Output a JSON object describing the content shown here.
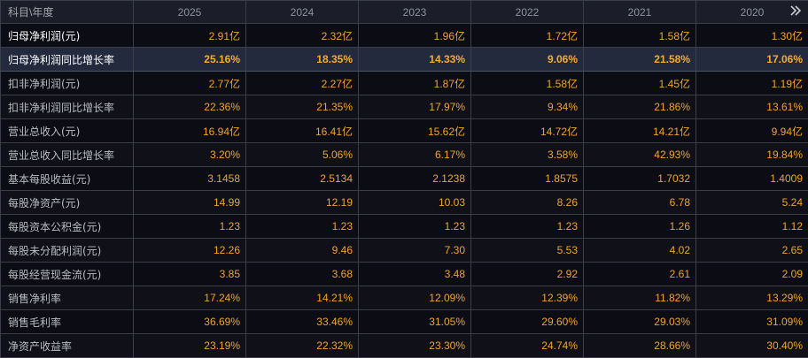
{
  "header": {
    "label": "科目\\年度",
    "years": [
      "2025",
      "2024",
      "2023",
      "2022",
      "2021",
      "2020"
    ],
    "more_icon": "double-chevron-right-icon"
  },
  "rows": [
    {
      "label": "归母净利润(元)",
      "values": [
        "2.91亿",
        "2.32亿",
        "1.96亿",
        "1.72亿",
        "1.58亿",
        "1.30亿"
      ]
    },
    {
      "label": "归母净利润同比增长率",
      "values": [
        "25.16%",
        "18.35%",
        "14.33%",
        "9.06%",
        "21.58%",
        "17.06%"
      ]
    },
    {
      "label": "扣非净利润(元)",
      "values": [
        "2.77亿",
        "2.27亿",
        "1.87亿",
        "1.58亿",
        "1.45亿",
        "1.19亿"
      ]
    },
    {
      "label": "扣非净利润同比增长率",
      "values": [
        "22.36%",
        "21.35%",
        "17.97%",
        "9.34%",
        "21.86%",
        "13.61%"
      ]
    },
    {
      "label": "营业总收入(元)",
      "values": [
        "16.94亿",
        "16.41亿",
        "15.62亿",
        "14.72亿",
        "14.21亿",
        "9.94亿"
      ]
    },
    {
      "label": "营业总收入同比增长率",
      "values": [
        "3.20%",
        "5.06%",
        "6.17%",
        "3.58%",
        "42.93%",
        "19.84%"
      ]
    },
    {
      "label": "基本每股收益(元)",
      "values": [
        "3.1458",
        "2.5134",
        "2.1238",
        "1.8575",
        "1.7032",
        "1.4009"
      ]
    },
    {
      "label": "每股净资产(元)",
      "values": [
        "14.99",
        "12.19",
        "10.03",
        "8.26",
        "6.78",
        "5.24"
      ]
    },
    {
      "label": "每股资本公积金(元)",
      "values": [
        "1.23",
        "1.23",
        "1.23",
        "1.23",
        "1.26",
        "1.12"
      ]
    },
    {
      "label": "每股未分配利润(元)",
      "values": [
        "12.26",
        "9.46",
        "7.30",
        "5.53",
        "4.02",
        "2.65"
      ]
    },
    {
      "label": "每股经营现金流(元)",
      "values": [
        "3.85",
        "3.68",
        "3.48",
        "2.92",
        "2.61",
        "2.09"
      ]
    },
    {
      "label": "销售净利率",
      "values": [
        "17.24%",
        "14.21%",
        "12.09%",
        "12.39%",
        "11.82%",
        "13.29%"
      ]
    },
    {
      "label": "销售毛利率",
      "values": [
        "36.69%",
        "33.46%",
        "31.05%",
        "29.60%",
        "29.03%",
        "31.09%"
      ]
    },
    {
      "label": "净资产收益率",
      "values": [
        "23.19%",
        "22.32%",
        "23.30%",
        "24.74%",
        "28.66%",
        "30.40%"
      ]
    }
  ],
  "colors": {
    "value": "#f0a52a",
    "label": "#b9bcc3",
    "selected_row_bg": "#232a3e",
    "grid": "#3a3d4a",
    "background": "#0c0c14"
  }
}
